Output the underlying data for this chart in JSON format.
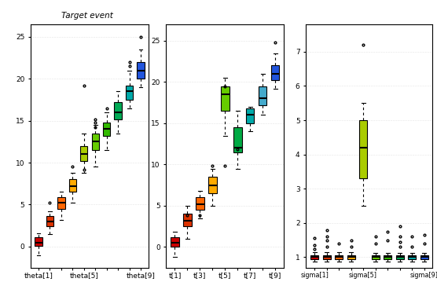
{
  "title": "Target event",
  "colors10": [
    "#cc0000",
    "#dd3300",
    "#ff6600",
    "#ffaa00",
    "#aacc00",
    "#66cc00",
    "#33bb00",
    "#00aa55",
    "#00aaaa",
    "#2255dd"
  ],
  "theta_data": [
    [
      0.5,
      0.1,
      1.1,
      -1.0,
      1.6,
      [],
      []
    ],
    [
      3.0,
      2.4,
      3.6,
      1.5,
      4.2,
      [
        5.2
      ],
      []
    ],
    [
      5.2,
      4.5,
      5.9,
      3.2,
      6.5,
      [],
      []
    ],
    [
      7.2,
      6.5,
      8.0,
      5.2,
      8.8,
      [
        9.5
      ],
      []
    ],
    [
      11.0,
      10.2,
      12.0,
      8.8,
      13.5,
      [
        19.2
      ],
      [
        9.2
      ]
    ],
    [
      12.5,
      11.5,
      13.5,
      9.5,
      14.5,
      [
        14.2,
        14.8,
        15.2
      ],
      []
    ],
    [
      14.0,
      13.2,
      14.8,
      11.5,
      16.0,
      [
        16.5
      ],
      []
    ],
    [
      16.0,
      15.2,
      17.2,
      13.5,
      18.5,
      [],
      []
    ],
    [
      18.5,
      17.5,
      19.2,
      16.5,
      21.0,
      [
        21.5,
        22.0
      ],
      []
    ],
    [
      21.0,
      20.0,
      22.0,
      19.0,
      23.5,
      [
        25.0
      ],
      []
    ]
  ],
  "t_data": [
    [
      0.5,
      0.0,
      1.2,
      -1.2,
      1.8,
      [],
      []
    ],
    [
      3.2,
      2.5,
      4.0,
      1.0,
      5.0,
      [
        3.8
      ],
      []
    ],
    [
      5.2,
      4.5,
      6.0,
      3.5,
      6.8,
      [],
      [
        3.8
      ]
    ],
    [
      7.5,
      6.5,
      8.5,
      5.0,
      9.5,
      [
        9.8
      ],
      []
    ],
    [
      18.5,
      16.5,
      19.5,
      13.5,
      20.5,
      [
        19.5
      ],
      [
        9.8
      ]
    ],
    [
      12.0,
      11.5,
      14.5,
      9.5,
      16.5,
      [
        11.8
      ],
      []
    ],
    [
      16.0,
      15.0,
      16.8,
      14.0,
      17.0,
      [],
      []
    ],
    [
      18.0,
      17.2,
      19.5,
      16.0,
      21.0,
      [],
      []
    ],
    [
      21.0,
      20.2,
      22.0,
      19.2,
      23.5,
      [
        24.8
      ],
      []
    ]
  ],
  "t_colors": [
    "#cc0000",
    "#dd3300",
    "#ff6600",
    "#ffaa00",
    "#66cc00",
    "#00aa44",
    "#00aaaa",
    "#44aacc",
    "#2255dd"
  ],
  "sigma_data": [
    [
      1.0,
      0.95,
      1.05,
      0.88,
      1.15,
      [
        1.25,
        1.35,
        1.55
      ],
      []
    ],
    [
      1.0,
      0.95,
      1.05,
      0.88,
      1.15,
      [
        1.3,
        1.5,
        1.6,
        1.8
      ],
      []
    ],
    [
      1.0,
      0.95,
      1.05,
      0.88,
      1.15,
      [
        1.4
      ],
      []
    ],
    [
      1.0,
      0.95,
      1.05,
      0.88,
      1.15,
      [
        1.3,
        1.5
      ],
      []
    ],
    [
      4.2,
      3.3,
      5.0,
      2.5,
      5.5,
      [
        7.2
      ],
      []
    ],
    [
      1.0,
      0.95,
      1.05,
      0.88,
      1.12,
      [
        1.4,
        1.6
      ],
      []
    ],
    [
      1.0,
      0.95,
      1.05,
      0.88,
      1.12,
      [
        1.5,
        1.75
      ],
      []
    ],
    [
      1.0,
      0.95,
      1.05,
      0.88,
      1.12,
      [
        1.3,
        1.45,
        1.6,
        1.9
      ],
      []
    ],
    [
      1.0,
      0.95,
      1.05,
      0.88,
      1.12,
      [
        1.3,
        1.6
      ],
      []
    ],
    [
      1.0,
      0.95,
      1.05,
      0.88,
      1.12,
      [
        1.4,
        1.65
      ],
      []
    ]
  ],
  "panel1_ylim": [
    -2.5,
    26.5
  ],
  "panel1_yticks": [
    0,
    5,
    10,
    15,
    20,
    25
  ],
  "panel2_ylim": [
    -2.5,
    27.0
  ],
  "panel2_yticks": [
    0,
    5,
    10,
    15,
    20,
    25
  ],
  "panel3_ylim": [
    0.7,
    7.8
  ],
  "panel3_yticks": [
    1,
    2,
    3,
    4,
    5,
    6,
    7
  ]
}
